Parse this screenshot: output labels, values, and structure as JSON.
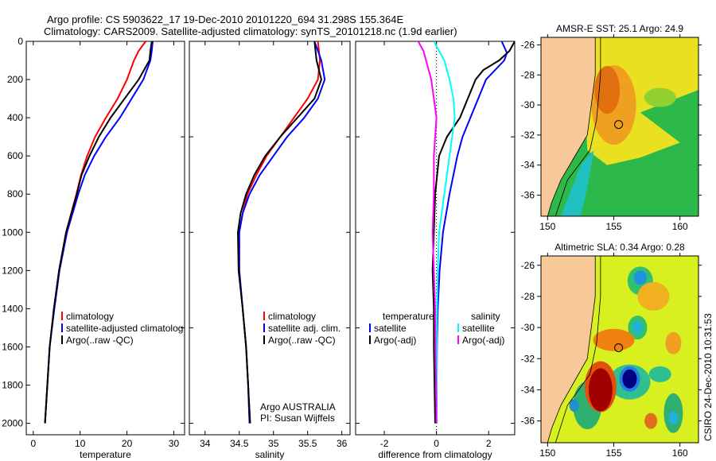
{
  "header": {
    "line1": "Argo profile: CS 5903622_17 19-Dec-2010 20101220_694 31.298S 155.364E",
    "line2": "Climatology: CARS2009. Satellite-adjusted climatology: synTS_20101218.nc (1.9d earlier)"
  },
  "side_stamp": "CSIRO 24-Dec-2010 10:31:53",
  "chart_data": [
    {
      "type": "line",
      "id": "temperature",
      "xlabel": "temperature",
      "ylabel": "",
      "xlim": [
        -1.5,
        32.3
      ],
      "ylim": [
        0,
        2060
      ],
      "y_reversed": true,
      "xticks": [
        0,
        10,
        20,
        30
      ],
      "yticks": [
        0,
        200,
        400,
        600,
        800,
        1000,
        1200,
        1400,
        1600,
        1800,
        2000
      ],
      "legend": [
        "climatology",
        "satellite-adjusted climatolog",
        "Argo(..raw -QC)"
      ],
      "annotation": [],
      "series": [
        {
          "name": "climatology",
          "color": "#ff0000",
          "y": [
            0,
            50,
            100,
            200,
            300,
            400,
            500,
            600,
            700,
            800,
            1000,
            1200,
            1400,
            1600,
            1800,
            2000
          ],
          "x": [
            24,
            22.5,
            21.5,
            20,
            18,
            15.5,
            13.2,
            11.5,
            10.2,
            9.2,
            7,
            5.5,
            4.4,
            3.5,
            3,
            2.5
          ]
        },
        {
          "name": "satellite-adjusted climatology",
          "color": "#0000ff",
          "y": [
            0,
            50,
            100,
            200,
            300,
            400,
            500,
            600,
            700,
            800,
            1000,
            1200,
            1400,
            1600,
            1800,
            2000
          ],
          "x": [
            25.5,
            25.3,
            25,
            23.5,
            21,
            18.5,
            15.5,
            13,
            11,
            9.6,
            7.2,
            5.6,
            4.5,
            3.5,
            3,
            2.5
          ]
        },
        {
          "name": "Argo(..raw -QC)",
          "color": "#000000",
          "y": [
            0,
            50,
            100,
            200,
            300,
            400,
            500,
            600,
            700,
            800,
            1000,
            1200,
            1400,
            1600,
            1800,
            2000
          ],
          "x": [
            25.3,
            25,
            24.8,
            22.5,
            19.5,
            16.5,
            14,
            12,
            10.3,
            9.3,
            7,
            5.5,
            4.4,
            3.5,
            3,
            2.5
          ]
        }
      ]
    },
    {
      "type": "line",
      "id": "salinity",
      "xlabel": "salinity",
      "ylabel": "",
      "xlim": [
        33.77,
        36.12
      ],
      "ylim": [
        0,
        2060
      ],
      "y_reversed": true,
      "xticks": [
        34,
        34.5,
        35,
        35.5,
        36
      ],
      "yticks": [],
      "legend": [
        "climatology",
        "satellite adj. clim.",
        "Argo(..raw -QC)"
      ],
      "annotation": [
        "Argo AUSTRALIA",
        "PI: Susan Wijffels"
      ],
      "series": [
        {
          "name": "climatology",
          "color": "#ff0000",
          "y": [
            0,
            100,
            200,
            300,
            400,
            500,
            600,
            700,
            800,
            900,
            1000,
            1200,
            1400,
            1600,
            1800,
            2000
          ],
          "x": [
            35.65,
            35.68,
            35.65,
            35.5,
            35.3,
            35.1,
            34.9,
            34.75,
            34.62,
            34.55,
            34.5,
            34.5,
            34.55,
            34.6,
            34.63,
            34.65
          ]
        },
        {
          "name": "satellite adj. clim.",
          "color": "#0000ff",
          "y": [
            0,
            100,
            200,
            300,
            400,
            500,
            600,
            700,
            800,
            900,
            1000,
            1200,
            1400,
            1600,
            1800,
            2000
          ],
          "x": [
            35.6,
            35.7,
            35.75,
            35.65,
            35.45,
            35.2,
            35,
            34.8,
            34.65,
            34.55,
            34.5,
            34.5,
            34.55,
            34.6,
            34.63,
            34.65
          ]
        },
        {
          "name": "Argo(..raw -QC)",
          "color": "#000000",
          "y": [
            0,
            100,
            200,
            300,
            400,
            500,
            600,
            700,
            800,
            900,
            1000,
            1200,
            1400,
            1600,
            1800,
            2000
          ],
          "x": [
            35.6,
            35.63,
            35.7,
            35.6,
            35.35,
            35.1,
            34.88,
            34.72,
            34.6,
            34.52,
            34.48,
            34.49,
            34.55,
            34.6,
            34.63,
            34.66
          ]
        }
      ]
    },
    {
      "type": "line",
      "id": "difference",
      "xlabel": "difference from climatology",
      "ylabel": "",
      "xlim": [
        -3.1,
        3.0
      ],
      "ylim": [
        0,
        2060
      ],
      "y_reversed": true,
      "xticks": [
        -2,
        0,
        2
      ],
      "yticks": [],
      "legend": [
        "temperature",
        "satellite",
        "Argo(-adj)",
        "salinity",
        "satellite",
        "Argo(-adj)"
      ],
      "annotation": [],
      "series": [
        {
          "name": "temperature satellite",
          "color": "#0000ff",
          "y": [
            0,
            60,
            100,
            200,
            300,
            400,
            500,
            600,
            800,
            1000,
            1200,
            1400,
            1600,
            2000
          ],
          "x": [
            2.5,
            2.7,
            2.6,
            1.9,
            1.6,
            1.3,
            1.0,
            0.8,
            0.5,
            0.25,
            0.12,
            0.05,
            0.02,
            0.0
          ]
        },
        {
          "name": "temperature Argo(-adj)",
          "color": "#000000",
          "y": [
            0,
            50,
            100,
            150,
            200,
            300,
            400,
            500,
            600,
            800,
            1000,
            1200,
            1400,
            1600,
            2000
          ],
          "x": [
            3.0,
            2.8,
            2.4,
            1.8,
            1.5,
            1.2,
            0.9,
            0.4,
            0.1,
            -0.05,
            -0.1,
            -0.15,
            -0.1,
            -0.1,
            -0.05
          ]
        },
        {
          "name": "salinity satellite",
          "color": "#00ffff",
          "y": [
            0,
            100,
            200,
            300,
            400,
            500,
            600,
            800,
            1000,
            1200,
            1400,
            2000
          ],
          "x": [
            -0.1,
            0.3,
            0.5,
            0.65,
            0.7,
            0.6,
            0.5,
            0.3,
            0.1,
            0.05,
            0.02,
            0.0
          ]
        },
        {
          "name": "salinity Argo(-adj)",
          "color": "#ff00ff",
          "y": [
            0,
            50,
            100,
            200,
            300,
            400,
            600,
            800,
            1000,
            1200,
            1400,
            2000
          ],
          "x": [
            -0.7,
            -0.5,
            -0.4,
            -0.2,
            -0.1,
            0.0,
            -0.1,
            -0.1,
            -0.15,
            -0.1,
            -0.05,
            0.0
          ]
        }
      ]
    },
    {
      "type": "heatmap",
      "id": "sst-map",
      "title": "AMSR-E SST: 25.1 Argo: 24.9",
      "xlim": [
        149.5,
        161.4
      ],
      "ylim": [
        -37.4,
        -25.5
      ],
      "xticks": [
        150,
        155,
        160
      ],
      "yticks": [
        -26,
        -28,
        -30,
        -32,
        -34,
        -36
      ],
      "marker": {
        "lon": 155.364,
        "lat": -31.298
      }
    },
    {
      "type": "heatmap",
      "id": "sla-map",
      "title": "Altimetric SLA: 0.34 Argo: 0.28",
      "xlim": [
        149.5,
        161.4
      ],
      "ylim": [
        -37.4,
        -25.4
      ],
      "xticks": [
        150,
        155,
        160
      ],
      "yticks": [
        -26,
        -28,
        -30,
        -32,
        -34,
        -36
      ],
      "marker": {
        "lon": 155.364,
        "lat": -31.298
      }
    }
  ]
}
